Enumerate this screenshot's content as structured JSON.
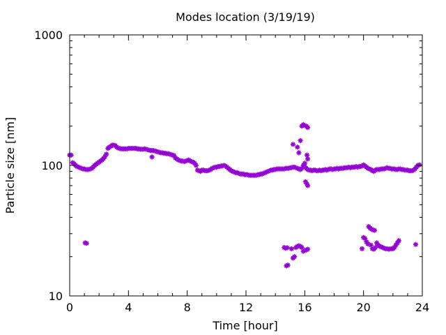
{
  "chart_data": {
    "type": "scatter",
    "title": "Modes location (3/19/19)",
    "xlabel": "Time [hour]",
    "ylabel": "Particle size [nm]",
    "xlim": [
      0,
      24
    ],
    "ylim": [
      10,
      1000
    ],
    "yscale": "log",
    "x_ticks": [
      0,
      4,
      8,
      12,
      16,
      20,
      24
    ],
    "y_ticks": [
      10,
      100,
      1000
    ],
    "x_minor_step": 1,
    "grid": false,
    "marker_color": "#9400d3",
    "marker": "asterisk",
    "series": [
      {
        "points": [
          [
            0.0,
            120
          ],
          [
            0.1,
            120
          ],
          [
            0.2,
            105
          ],
          [
            0.3,
            103
          ],
          [
            0.4,
            100
          ],
          [
            0.5,
            98
          ],
          [
            0.6,
            97
          ],
          [
            0.7,
            96
          ],
          [
            0.8,
            95
          ],
          [
            0.9,
            94
          ],
          [
            1.0,
            94
          ],
          [
            1.1,
            93
          ],
          [
            1.2,
            93
          ],
          [
            1.3,
            93
          ],
          [
            1.4,
            94
          ],
          [
            1.5,
            95
          ],
          [
            1.6,
            97
          ],
          [
            1.7,
            100
          ],
          [
            1.8,
            102
          ],
          [
            1.9,
            104
          ],
          [
            2.0,
            106
          ],
          [
            2.1,
            108
          ],
          [
            2.2,
            110
          ],
          [
            2.3,
            113
          ],
          [
            2.4,
            117
          ],
          [
            2.5,
            122
          ],
          [
            2.6,
            135
          ],
          [
            2.7,
            138
          ],
          [
            2.8,
            140
          ],
          [
            2.9,
            143
          ],
          [
            3.0,
            143
          ],
          [
            3.1,
            142
          ],
          [
            3.2,
            138
          ],
          [
            3.3,
            136
          ],
          [
            3.4,
            135
          ],
          [
            3.5,
            134
          ],
          [
            3.6,
            134
          ],
          [
            3.7,
            134
          ],
          [
            3.8,
            134
          ],
          [
            3.9,
            134
          ],
          [
            4.0,
            135
          ],
          [
            4.1,
            135
          ],
          [
            4.2,
            135
          ],
          [
            4.3,
            135
          ],
          [
            4.4,
            135
          ],
          [
            4.5,
            135
          ],
          [
            4.6,
            134
          ],
          [
            4.7,
            134
          ],
          [
            4.8,
            133
          ],
          [
            4.9,
            133
          ],
          [
            5.0,
            133
          ],
          [
            5.1,
            134
          ],
          [
            5.2,
            133
          ],
          [
            5.3,
            132
          ],
          [
            5.4,
            131
          ],
          [
            5.5,
            130
          ],
          [
            5.6,
            130
          ],
          [
            5.7,
            130
          ],
          [
            5.8,
            129
          ],
          [
            5.9,
            128
          ],
          [
            6.0,
            127
          ],
          [
            6.1,
            126
          ],
          [
            6.2,
            125
          ],
          [
            6.3,
            125
          ],
          [
            6.4,
            124
          ],
          [
            6.5,
            124
          ],
          [
            6.6,
            123
          ],
          [
            6.7,
            123
          ],
          [
            6.8,
            122
          ],
          [
            6.9,
            121
          ],
          [
            7.0,
            120
          ],
          [
            7.1,
            119
          ],
          [
            7.2,
            114
          ],
          [
            7.3,
            112
          ],
          [
            7.4,
            110
          ],
          [
            7.5,
            109
          ],
          [
            7.6,
            108
          ],
          [
            7.7,
            108
          ],
          [
            7.8,
            107
          ],
          [
            7.9,
            108
          ],
          [
            8.0,
            109
          ],
          [
            8.1,
            110
          ],
          [
            8.2,
            108
          ],
          [
            8.3,
            107
          ],
          [
            8.4,
            106
          ],
          [
            8.5,
            104
          ],
          [
            8.6,
            100
          ],
          [
            8.7,
            92
          ],
          [
            8.8,
            91
          ],
          [
            8.9,
            90
          ],
          [
            9.0,
            92
          ],
          [
            9.1,
            92
          ],
          [
            9.2,
            91
          ],
          [
            9.3,
            91
          ],
          [
            9.4,
            91
          ],
          [
            9.5,
            92
          ],
          [
            9.6,
            93
          ],
          [
            9.7,
            95
          ],
          [
            9.8,
            96
          ],
          [
            9.9,
            97
          ],
          [
            10.0,
            97
          ],
          [
            10.1,
            98
          ],
          [
            10.2,
            98
          ],
          [
            10.3,
            99
          ],
          [
            10.4,
            99
          ],
          [
            10.5,
            100
          ],
          [
            10.6,
            99
          ],
          [
            10.7,
            97
          ],
          [
            10.8,
            95
          ],
          [
            10.9,
            93
          ],
          [
            11.0,
            91
          ],
          [
            11.1,
            90
          ],
          [
            11.2,
            89
          ],
          [
            11.3,
            88
          ],
          [
            11.4,
            88
          ],
          [
            11.5,
            87
          ],
          [
            11.6,
            86
          ],
          [
            11.7,
            86
          ],
          [
            11.8,
            86
          ],
          [
            11.9,
            85
          ],
          [
            12.0,
            85
          ],
          [
            12.1,
            85
          ],
          [
            12.2,
            84
          ],
          [
            12.3,
            84
          ],
          [
            12.4,
            84
          ],
          [
            12.5,
            84
          ],
          [
            12.6,
            84
          ],
          [
            12.7,
            84
          ],
          [
            12.8,
            85
          ],
          [
            12.9,
            85
          ],
          [
            13.0,
            86
          ],
          [
            13.1,
            86
          ],
          [
            13.2,
            87
          ],
          [
            13.3,
            88
          ],
          [
            13.4,
            89
          ],
          [
            13.5,
            90
          ],
          [
            13.6,
            91
          ],
          [
            13.7,
            92
          ],
          [
            13.8,
            92
          ],
          [
            13.9,
            93
          ],
          [
            14.0,
            93
          ],
          [
            14.1,
            94
          ],
          [
            14.2,
            94
          ],
          [
            14.3,
            94
          ],
          [
            14.4,
            94
          ],
          [
            14.5,
            94
          ],
          [
            14.6,
            94
          ],
          [
            14.7,
            95
          ],
          [
            14.8,
            95
          ],
          [
            14.9,
            95
          ],
          [
            15.0,
            96
          ],
          [
            15.1,
            96
          ],
          [
            15.2,
            97
          ],
          [
            15.3,
            97
          ],
          [
            15.4,
            96
          ],
          [
            15.5,
            95
          ],
          [
            15.6,
            94
          ],
          [
            15.7,
            93
          ],
          [
            15.8,
            95
          ],
          [
            15.9,
            100
          ],
          [
            16.0,
            104
          ],
          [
            16.1,
            95
          ],
          [
            16.2,
            93
          ],
          [
            16.3,
            92
          ],
          [
            16.4,
            92
          ],
          [
            16.5,
            91
          ],
          [
            16.6,
            92
          ],
          [
            16.7,
            92
          ],
          [
            16.8,
            91
          ],
          [
            16.9,
            91
          ],
          [
            17.0,
            92
          ],
          [
            17.1,
            91
          ],
          [
            17.2,
            92
          ],
          [
            17.3,
            92
          ],
          [
            17.4,
            93
          ],
          [
            17.5,
            92
          ],
          [
            17.6,
            93
          ],
          [
            17.7,
            94
          ],
          [
            17.8,
            94
          ],
          [
            17.9,
            93
          ],
          [
            18.0,
            94
          ],
          [
            18.1,
            94
          ],
          [
            18.2,
            95
          ],
          [
            18.3,
            94
          ],
          [
            18.4,
            95
          ],
          [
            18.5,
            95
          ],
          [
            18.6,
            95
          ],
          [
            18.7,
            96
          ],
          [
            18.8,
            96
          ],
          [
            18.9,
            96
          ],
          [
            19.0,
            97
          ],
          [
            19.1,
            96
          ],
          [
            19.2,
            97
          ],
          [
            19.3,
            97
          ],
          [
            19.4,
            97
          ],
          [
            19.5,
            98
          ],
          [
            19.6,
            97
          ],
          [
            19.7,
            98
          ],
          [
            19.8,
            98
          ],
          [
            19.9,
            99
          ],
          [
            20.0,
            101
          ],
          [
            20.1,
            99
          ],
          [
            20.2,
            97
          ],
          [
            20.3,
            95
          ],
          [
            20.4,
            94
          ],
          [
            20.5,
            93
          ],
          [
            20.6,
            91
          ],
          [
            20.7,
            90
          ],
          [
            20.8,
            92
          ],
          [
            20.9,
            93
          ],
          [
            21.0,
            93
          ],
          [
            21.1,
            93
          ],
          [
            21.2,
            94
          ],
          [
            21.3,
            94
          ],
          [
            21.4,
            94
          ],
          [
            21.5,
            95
          ],
          [
            21.6,
            96
          ],
          [
            21.7,
            95
          ],
          [
            21.8,
            95
          ],
          [
            21.9,
            94
          ],
          [
            22.0,
            94
          ],
          [
            22.1,
            94
          ],
          [
            22.2,
            93
          ],
          [
            22.3,
            93
          ],
          [
            22.4,
            94
          ],
          [
            22.5,
            94
          ],
          [
            22.6,
            93
          ],
          [
            22.7,
            93
          ],
          [
            22.8,
            92
          ],
          [
            22.9,
            92
          ],
          [
            23.0,
            92
          ],
          [
            23.1,
            91
          ],
          [
            23.2,
            91
          ],
          [
            23.3,
            91
          ],
          [
            23.4,
            92
          ],
          [
            23.5,
            94
          ],
          [
            23.6,
            97
          ],
          [
            23.7,
            100
          ],
          [
            23.8,
            101
          ],
          [
            1.05,
            25.5
          ],
          [
            1.15,
            25.3
          ],
          [
            5.6,
            116
          ],
          [
            15.2,
            145
          ],
          [
            15.5,
            138
          ],
          [
            15.6,
            125
          ],
          [
            15.7,
            155
          ],
          [
            15.8,
            200
          ],
          [
            15.9,
            205
          ],
          [
            16.0,
            202
          ],
          [
            16.1,
            200
          ],
          [
            16.2,
            195
          ],
          [
            16.15,
            120
          ],
          [
            16.2,
            112
          ],
          [
            16.0,
            98
          ],
          [
            16.05,
            75
          ],
          [
            16.15,
            72
          ],
          [
            16.2,
            70
          ],
          [
            14.6,
            23.5
          ],
          [
            14.7,
            23.2
          ],
          [
            14.8,
            23.4
          ],
          [
            14.75,
            17.0
          ],
          [
            14.85,
            17.2
          ],
          [
            15.1,
            23.0
          ],
          [
            15.2,
            19.5
          ],
          [
            15.3,
            20.0
          ],
          [
            15.4,
            23.5
          ],
          [
            15.5,
            24.0
          ],
          [
            15.6,
            24.2
          ],
          [
            15.7,
            24.0
          ],
          [
            15.8,
            23.5
          ],
          [
            15.9,
            22.0
          ],
          [
            16.0,
            22.3
          ],
          [
            16.1,
            22.5
          ],
          [
            16.2,
            22.8
          ],
          [
            19.9,
            23.0
          ],
          [
            20.0,
            28.0
          ],
          [
            20.1,
            27.5
          ],
          [
            20.2,
            26.0
          ],
          [
            20.3,
            25.0
          ],
          [
            20.35,
            34.0
          ],
          [
            20.45,
            33.0
          ],
          [
            20.55,
            32.5
          ],
          [
            20.65,
            32.0
          ],
          [
            20.75,
            31.8
          ],
          [
            20.5,
            24.5
          ],
          [
            20.6,
            23.0
          ],
          [
            20.7,
            22.8
          ],
          [
            20.8,
            23.5
          ],
          [
            20.9,
            25.5
          ],
          [
            21.0,
            24.5
          ],
          [
            21.1,
            24.0
          ],
          [
            21.2,
            23.8
          ],
          [
            21.3,
            23.5
          ],
          [
            21.4,
            23.2
          ],
          [
            21.5,
            23.0
          ],
          [
            21.6,
            23.0
          ],
          [
            21.7,
            22.8
          ],
          [
            21.8,
            22.9
          ],
          [
            21.9,
            23.0
          ],
          [
            22.0,
            23.0
          ],
          [
            22.1,
            23.5
          ],
          [
            22.2,
            24.5
          ],
          [
            22.3,
            25.5
          ],
          [
            22.4,
            26.5
          ],
          [
            23.55,
            24.8
          ]
        ]
      }
    ]
  }
}
